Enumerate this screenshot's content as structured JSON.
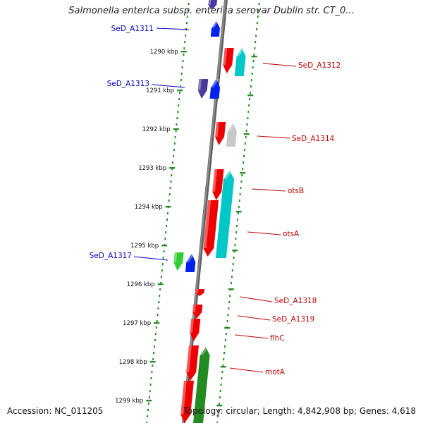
{
  "title": "Salmonella enterica subsp. enterica serovar Dublin str. CT_0...",
  "footer": {
    "accession": "Accession: NC_011205",
    "topology": "Topology: circular; Length: 4,842,908 bp; Genes: 4,618"
  },
  "colors": {
    "backbone": "#8c8c8c",
    "dotted_track": "#2e8b2e",
    "forward_label": "#c00000",
    "reverse_label": "#0000c0",
    "red": "#ee0000",
    "cyan": "#00c8c8",
    "blue": "#0022ee",
    "indigo": "#4a3a9a",
    "green": "#33cc33",
    "grey": "#c8c8c8",
    "darkgreen": "#228b22"
  },
  "ticks": [
    "1290 kbp",
    "1291 kbp",
    "1292 kbp",
    "1293 kbp",
    "1294 kbp",
    "1295 kbp",
    "1296 kbp",
    "1297 kbp",
    "1298 kbp",
    "1299 kbp"
  ],
  "forward_genes": [
    "SeD_A1312",
    "SeD_A1314",
    "otsB",
    "otsA",
    "SeD_A1318",
    "SeD_A1319",
    "flhC",
    "motA"
  ],
  "reverse_genes": [
    "SeD_A1311",
    "SeD_A1313",
    "SeD_A1317"
  ]
}
